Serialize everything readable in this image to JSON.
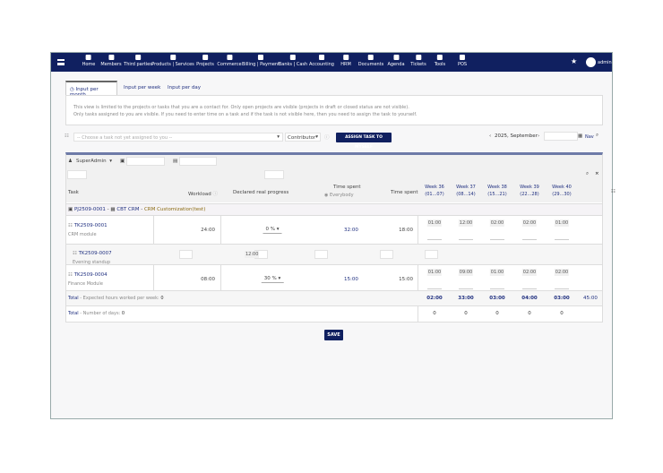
{
  "nav": {
    "items": [
      "Home",
      "Members",
      "Third parties",
      "Products | Services",
      "Projects",
      "Commerce",
      "Billing | Payment",
      "Banks | Cash",
      "Accounting",
      "HRM",
      "Documents",
      "Agenda",
      "Tickets",
      "Tools",
      "POS"
    ],
    "active": "HRM",
    "user": "admin"
  },
  "tabs": [
    "Input per month",
    "Input per week",
    "Input per day"
  ],
  "info": [
    "This view is limited to the projects or tasks that you are a contact for. Only open projects are visible (projects in draft or closed status are not visible).",
    "Only tasks assigned to you are visible. If you need to enter time on a task and if the task is not visible here, then you need to assign the task to yourself."
  ],
  "assign": {
    "placeholder": "-- Choose a task not yet assigned to you --",
    "role": "Contributor",
    "button": "ASSIGN TASK TO MYSELF"
  },
  "period": {
    "label": "2025, September",
    "nav": "Nav"
  },
  "filter": {
    "user": "SuperAdmin"
  },
  "headers": {
    "task": "Task",
    "workload": "Workload",
    "progress": "Declared real progress",
    "time_spent_all": "Time spent",
    "everybody": "Everybody",
    "time_spent": "Time spent",
    "weeks": [
      [
        "Week 36",
        "(01...07)"
      ],
      [
        "Week 37",
        "(08...14)"
      ],
      [
        "Week 38",
        "(15...21)"
      ],
      [
        "Week 39",
        "(22...28)"
      ],
      [
        "Week 40",
        "(29...30)"
      ]
    ]
  },
  "project": {
    "ref": "PJ2509-0001",
    "client": "CBT CRM",
    "title": "CRM Customization(test)"
  },
  "tasks": [
    {
      "ref": "TK2509-0001",
      "label": "CRM module",
      "workload": "24:00",
      "progress": "0 %",
      "spent_all": "32:00",
      "spent": "18:00",
      "weeks": [
        "01:00",
        "12:00",
        "02:00",
        "02:00",
        "01:00"
      ]
    },
    {
      "ref": "TK2509-0007",
      "label": "Evening standup",
      "value": "12:00"
    },
    {
      "ref": "TK2509-0004",
      "label": "Finance Module",
      "workload": "08:00",
      "progress": "30 %",
      "spent_all": "15:00",
      "spent": "15:00",
      "weeks": [
        "01:00",
        "09:00",
        "01:00",
        "02:00",
        "02:00"
      ]
    }
  ],
  "totals": {
    "label": "Total",
    "expected": "- Expected hours worked per week:",
    "expected_val": "0",
    "weeks": [
      "02:00",
      "33:00",
      "03:00",
      "04:00",
      "03:00"
    ],
    "grand": "45:00",
    "days_label": "- Number of days:",
    "days_val": "0",
    "days": [
      "0",
      "0",
      "0",
      "0",
      "0"
    ]
  },
  "save": "SAVE"
}
